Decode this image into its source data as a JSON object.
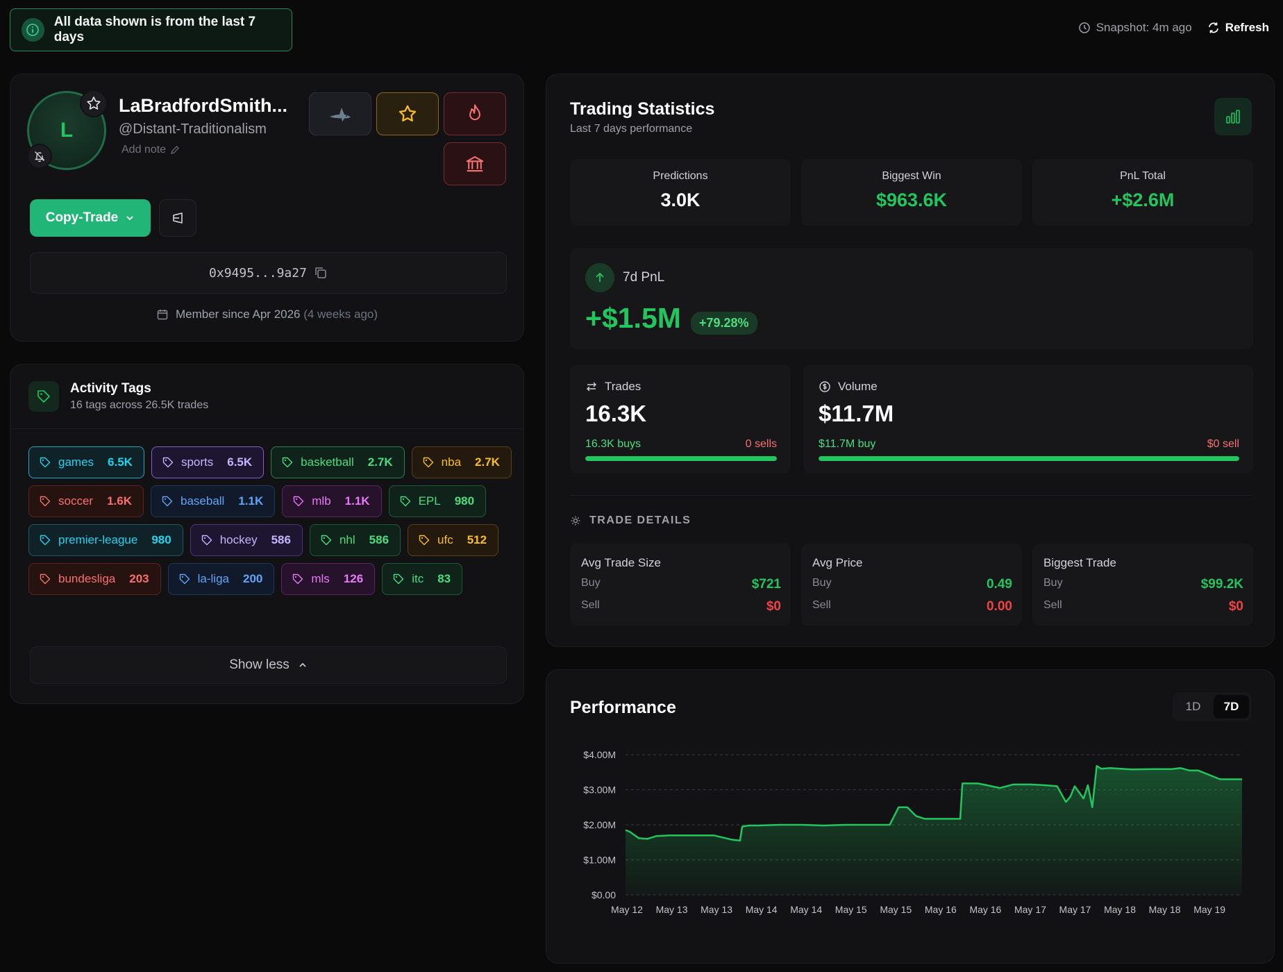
{
  "banner": {
    "text": "All data shown is from the last 7 days"
  },
  "topbar": {
    "snapshot": "Snapshot: 4m ago",
    "refresh": "Refresh"
  },
  "profile": {
    "avatar_letter": "L",
    "name": "LaBradfordSmith...",
    "handle": "@Distant-Traditionalism",
    "add_note": "Add note",
    "copy_trade": "Copy-Trade",
    "address": "0x9495...9a27",
    "member_since": "Member since Apr 2026",
    "member_ago": "(4 weeks ago)",
    "icons": [
      "star-icon",
      "bell-off-icon",
      "shark-icon",
      "star-icon",
      "flame-icon",
      "bank-icon",
      "share-icon",
      "copy-icon",
      "calendar-icon"
    ]
  },
  "activity_tags": {
    "title": "Activity Tags",
    "subtitle": "16 tags across 26.5K trades",
    "show_less": "Show less",
    "tags": [
      {
        "name": "games",
        "count": "6.5K",
        "color": "cyan",
        "selected": true
      },
      {
        "name": "sports",
        "count": "6.5K",
        "color": "purple",
        "selected": true
      },
      {
        "name": "basketball",
        "count": "2.7K",
        "color": "green",
        "selected": true
      },
      {
        "name": "nba",
        "count": "2.7K",
        "color": "amber",
        "selected": false
      },
      {
        "name": "soccer",
        "count": "1.6K",
        "color": "red",
        "selected": false
      },
      {
        "name": "baseball",
        "count": "1.1K",
        "color": "blue",
        "selected": false
      },
      {
        "name": "mlb",
        "count": "1.1K",
        "color": "pink",
        "selected": false
      },
      {
        "name": "EPL",
        "count": "980",
        "color": "green",
        "selected": false
      },
      {
        "name": "premier-league",
        "count": "980",
        "color": "cyan",
        "selected": false
      },
      {
        "name": "hockey",
        "count": "586",
        "color": "purple",
        "selected": false
      },
      {
        "name": "nhl",
        "count": "586",
        "color": "green",
        "selected": false
      },
      {
        "name": "ufc",
        "count": "512",
        "color": "amber",
        "selected": false
      },
      {
        "name": "bundesliga",
        "count": "203",
        "color": "red",
        "selected": false
      },
      {
        "name": "la-liga",
        "count": "200",
        "color": "blue",
        "selected": false
      },
      {
        "name": "mls",
        "count": "126",
        "color": "pink",
        "selected": false
      },
      {
        "name": "itc",
        "count": "83",
        "color": "green",
        "selected": false
      }
    ]
  },
  "stats": {
    "title": "Trading Statistics",
    "subtitle": "Last 7 days performance",
    "predictions": {
      "label": "Predictions",
      "value": "3.0K"
    },
    "biggest_win": {
      "label": "Biggest Win",
      "value": "$963.6K"
    },
    "pnl_total": {
      "label": "PnL Total",
      "value": "+$2.6M"
    },
    "pnl7d": {
      "label": "7d PnL",
      "value": "+$1.5M",
      "pct": "+79.28%"
    },
    "trades": {
      "label": "Trades",
      "value": "16.3K",
      "left": "16.3K buys",
      "right": "0 sells",
      "fill": 1.0
    },
    "volume": {
      "label": "Volume",
      "value": "$11.7M",
      "left": "$11.7M buy",
      "right": "$0 sell",
      "fill": 1.0
    },
    "trade_details_title": "TRADE DETAILS",
    "details": [
      {
        "title": "Avg Trade Size",
        "buy_label": "Buy",
        "buy": "$721",
        "sell_label": "Sell",
        "sell": "$0"
      },
      {
        "title": "Avg Price",
        "buy_label": "Buy",
        "buy": "0.49",
        "sell_label": "Sell",
        "sell": "0.00"
      },
      {
        "title": "Biggest Trade",
        "buy_label": "Buy",
        "buy": "$99.2K",
        "sell_label": "Sell",
        "sell": "$0"
      }
    ],
    "colors": {
      "green": "#22c55e",
      "red": "#ef4444"
    }
  },
  "performance": {
    "title": "Performance",
    "ranges": [
      "1D",
      "7D"
    ],
    "active_range": "7D"
  },
  "chart_data": {
    "type": "area",
    "title": "Performance",
    "xlabel": "",
    "ylabel": "",
    "ylim": [
      0,
      4000000
    ],
    "y_ticks": [
      "$0.00",
      "$1.00M",
      "$2.00M",
      "$3.00M",
      "$4.00M"
    ],
    "x_ticks": [
      "May 12",
      "May 13",
      "May 13",
      "May 14",
      "May 14",
      "May 15",
      "May 15",
      "May 16",
      "May 16",
      "May 17",
      "May 17",
      "May 18",
      "May 18",
      "May 19"
    ],
    "x_range": [
      0,
      14
    ],
    "grid": true,
    "color": "#22c55e",
    "series": [
      {
        "x": [
          0,
          0.1,
          0.3,
          0.5,
          0.7,
          1.0,
          1.5,
          2.0,
          2.4,
          2.6,
          2.65,
          2.8,
          3.0,
          3.5,
          4.0,
          4.5,
          5.0,
          6.0,
          6.2,
          6.4,
          6.6,
          6.8,
          7.0,
          7.4,
          7.6,
          7.65,
          8.0,
          8.2,
          8.5,
          8.8,
          9.2,
          9.5,
          9.8,
          10.0,
          10.1,
          10.2,
          10.4,
          10.5,
          10.6,
          10.7,
          10.8,
          11.0,
          11.5,
          12.0,
          12.4,
          12.6,
          12.8,
          13.0,
          13.5,
          14.0
        ],
        "y": [
          1850000,
          1800000,
          1620000,
          1600000,
          1680000,
          1700000,
          1700000,
          1700000,
          1580000,
          1550000,
          1950000,
          1980000,
          1980000,
          2000000,
          2000000,
          1980000,
          2000000,
          2000000,
          2500000,
          2500000,
          2250000,
          2170000,
          2170000,
          2170000,
          2170000,
          3180000,
          3180000,
          3130000,
          3050000,
          3150000,
          3150000,
          3130000,
          3100000,
          2650000,
          2800000,
          3100000,
          2750000,
          3130000,
          2500000,
          3680000,
          3600000,
          3620000,
          3580000,
          3590000,
          3590000,
          3620000,
          3550000,
          3550000,
          3300000,
          3300000
        ]
      }
    ]
  }
}
